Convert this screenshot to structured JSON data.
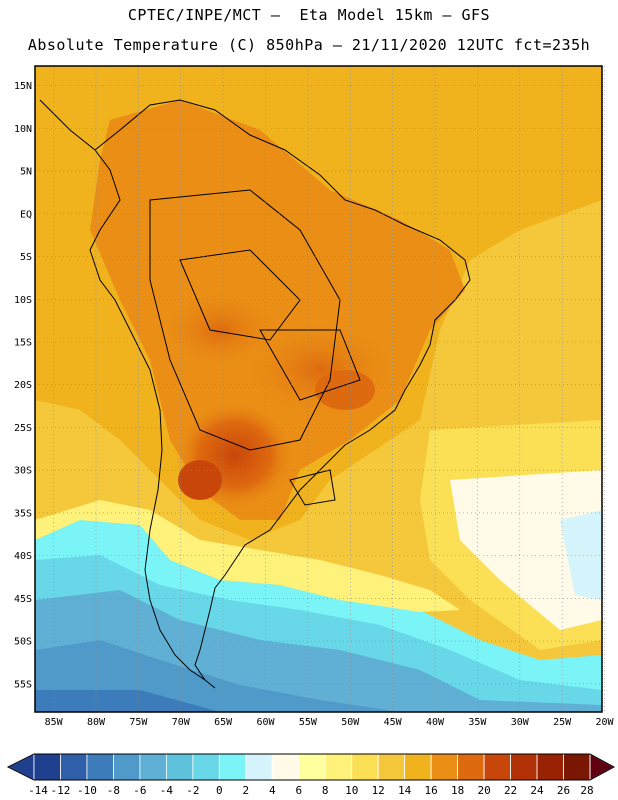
{
  "header": {
    "line1": "CPTEC/INPE/MCT –  Eta Model 15km – GFS",
    "line2": "Absolute Temperature (C) 850hPa – 21/11/2020 12UTC fct=235h"
  },
  "map": {
    "lat_labels": [
      "15N",
      "10N",
      "5N",
      "EQ",
      "5S",
      "10S",
      "15S",
      "20S",
      "25S",
      "30S",
      "35S",
      "40S",
      "45S",
      "50S",
      "55S"
    ],
    "lon_labels": [
      "85W",
      "80W",
      "75W",
      "70W",
      "65W",
      "60W",
      "55W",
      "50W",
      "45W",
      "40W",
      "35W",
      "30W",
      "25W",
      "20W"
    ]
  },
  "colorbar": {
    "ticks": [
      "-14",
      "-12",
      "-10",
      "-8",
      "-6",
      "-4",
      "-2",
      "0",
      "2",
      "4",
      "6",
      "8",
      "10",
      "12",
      "14",
      "16",
      "18",
      "20",
      "22",
      "24",
      "26",
      "28"
    ],
    "colors": [
      "#1f3f8f",
      "#2f5fa8",
      "#3c7cbb",
      "#4f9ac8",
      "#5fb0d4",
      "#5fc2dd",
      "#68d8e8",
      "#7af4f6",
      "#d6f4fb",
      "#fffbe8",
      "#ffff9e",
      "#fff27a",
      "#fbe056",
      "#f5c83c",
      "#f0b31e",
      "#ea8e15",
      "#de6a0f",
      "#c9460a",
      "#b23106",
      "#9a2204",
      "#7a1703"
    ]
  }
}
